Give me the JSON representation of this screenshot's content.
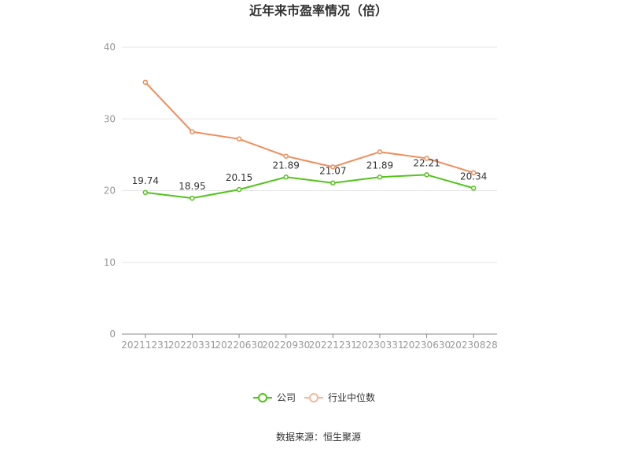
{
  "chart_data": {
    "type": "line",
    "title": "近年来市盈率情况（倍）",
    "categories": [
      "20211231",
      "20220331",
      "20220630",
      "20220930",
      "20221231",
      "20230331",
      "20230630",
      "20230828"
    ],
    "series": [
      {
        "name": "公司",
        "color": "#52c41a",
        "values": [
          19.74,
          18.95,
          20.15,
          21.89,
          21.07,
          21.89,
          22.21,
          20.34
        ],
        "labels": [
          "19.74",
          "18.95",
          "20.15",
          "21.89",
          "21.07",
          "21.89",
          "22.21",
          "20.34"
        ]
      },
      {
        "name": "行业中位数",
        "color": "#f08c5a",
        "values": [
          35.1,
          28.2,
          27.2,
          24.8,
          23.3,
          25.4,
          24.5,
          22.5
        ]
      }
    ],
    "yticks": [
      "0",
      "10",
      "20",
      "30",
      "40"
    ],
    "ylim": [
      0,
      40
    ],
    "grid": true,
    "legend_position": "bottom"
  },
  "source": "数据来源：恒生聚源"
}
